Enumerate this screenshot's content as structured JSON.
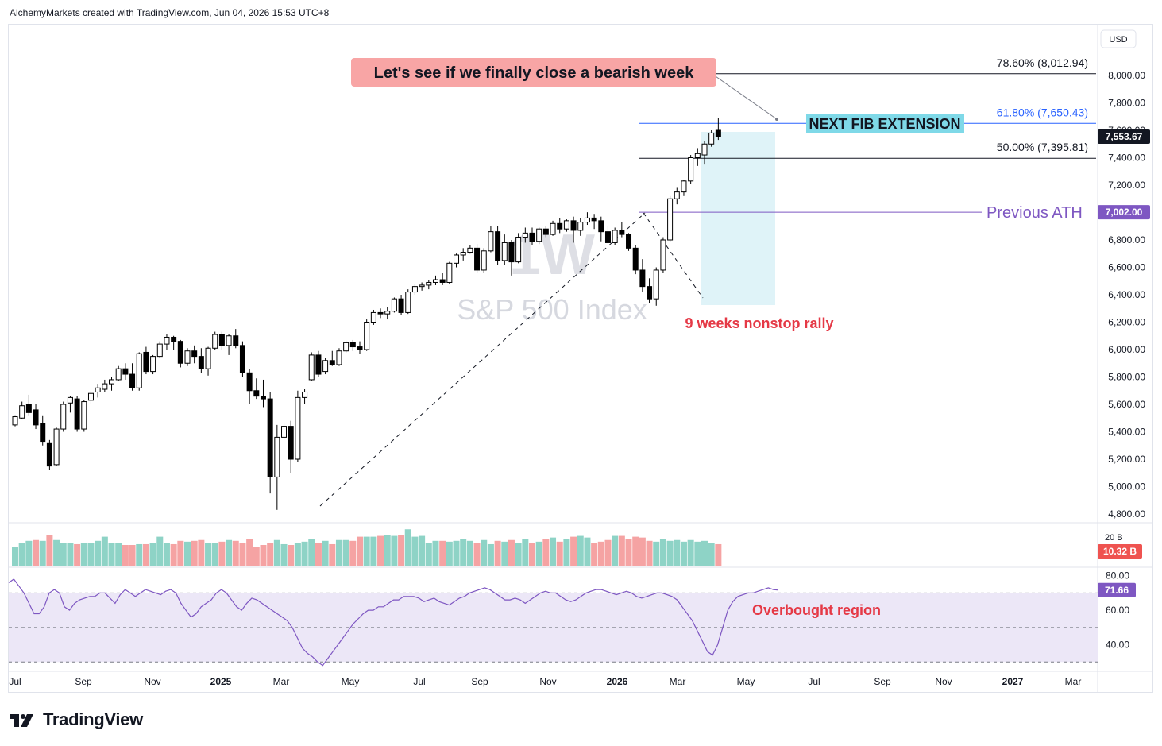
{
  "header": {
    "caption": "AlchemyMarkets created with TradingView.com, Jun 04, 2026 15:53 UTC+8"
  },
  "footer": {
    "brand": "TradingView"
  },
  "chart_data": {
    "type": "candlestick",
    "watermark": {
      "interval": "1W",
      "symbol": "S&P 500 Index"
    },
    "currency": "USD",
    "price_axis": {
      "ticks": [
        4800,
        5000,
        5200,
        5400,
        5600,
        5800,
        6000,
        6200,
        6400,
        6600,
        6800,
        7000,
        7200,
        7400,
        7600,
        7800,
        8000
      ],
      "tick_labels": [
        "4,800.00",
        "5,000.00",
        "5,200.00",
        "5,400.00",
        "5,600.00",
        "5,800.00",
        "6,000.00",
        "6,200.00",
        "6,400.00",
        "6,600.00",
        "6,800.00",
        "7,000.00",
        "7,200.00",
        "7,400.00",
        "7,600.00",
        "7,800.00",
        "8,000.00"
      ],
      "range": [
        4700,
        8300
      ]
    },
    "time_axis": {
      "labels": [
        "Jul",
        "Sep",
        "Nov",
        "2025",
        "Mar",
        "May",
        "Jul",
        "Sep",
        "Nov",
        "2026",
        "Mar",
        "May",
        "Jul",
        "Sep",
        "Nov",
        "2027",
        "Mar"
      ]
    },
    "last_price": {
      "value": 7553.67,
      "label": "7,553.67"
    },
    "previous_ath": {
      "value": 7002.0,
      "label": "7,002.00",
      "text": "Previous ATH",
      "color": "#7e57c2"
    },
    "fib_levels": [
      {
        "label": "78.60% (8,012.94)",
        "value": 8012.94,
        "color": "#131722"
      },
      {
        "label": "61.80% (7,650.43)",
        "value": 7650.43,
        "color": "#2962ff"
      },
      {
        "label": "50.00% (7,395.81)",
        "value": 7395.81,
        "color": "#131722"
      }
    ],
    "annotations": {
      "bearish_callout": "Let's see if we finally close a bearish week",
      "fib_extension_box": "NEXT FIB EXTENSION",
      "rally_note": "9 weeks nonstop rally",
      "overbought_note": "Overbought region"
    },
    "colors": {
      "up_candle": "#ffffff",
      "down_candle": "#000000",
      "candle_border": "#000000",
      "volume_up": "#8ed3c6",
      "volume_down": "#f5a3a3",
      "rsi_line": "#7e57c2",
      "rsi_band": "#ece7f7",
      "rally_box": "#dff3f8",
      "callout_bg": "#f8a5a5",
      "fib_box_bg": "#7fd9e8",
      "annotation_red": "#e53946"
    },
    "candles": [
      {
        "o": 5450,
        "h": 5520,
        "l": 5440,
        "c": 5510
      },
      {
        "o": 5500,
        "h": 5620,
        "l": 5490,
        "c": 5590
      },
      {
        "o": 5600,
        "h": 5670,
        "l": 5520,
        "c": 5540
      },
      {
        "o": 5560,
        "h": 5600,
        "l": 5420,
        "c": 5450
      },
      {
        "o": 5460,
        "h": 5520,
        "l": 5300,
        "c": 5330
      },
      {
        "o": 5320,
        "h": 5340,
        "l": 5120,
        "c": 5150
      },
      {
        "o": 5160,
        "h": 5430,
        "l": 5150,
        "c": 5420
      },
      {
        "o": 5420,
        "h": 5620,
        "l": 5400,
        "c": 5600
      },
      {
        "o": 5610,
        "h": 5660,
        "l": 5540,
        "c": 5650
      },
      {
        "o": 5640,
        "h": 5660,
        "l": 5400,
        "c": 5420
      },
      {
        "o": 5420,
        "h": 5630,
        "l": 5400,
        "c": 5620
      },
      {
        "o": 5630,
        "h": 5700,
        "l": 5600,
        "c": 5680
      },
      {
        "o": 5690,
        "h": 5750,
        "l": 5650,
        "c": 5720
      },
      {
        "o": 5710,
        "h": 5780,
        "l": 5690,
        "c": 5750
      },
      {
        "o": 5750,
        "h": 5800,
        "l": 5700,
        "c": 5780
      },
      {
        "o": 5780,
        "h": 5880,
        "l": 5770,
        "c": 5860
      },
      {
        "o": 5860,
        "h": 5900,
        "l": 5780,
        "c": 5820
      },
      {
        "o": 5820,
        "h": 5900,
        "l": 5700,
        "c": 5720
      },
      {
        "o": 5720,
        "h": 5980,
        "l": 5700,
        "c": 5970
      },
      {
        "o": 5980,
        "h": 6020,
        "l": 5820,
        "c": 5840
      },
      {
        "o": 5840,
        "h": 5960,
        "l": 5820,
        "c": 5950
      },
      {
        "o": 5950,
        "h": 6060,
        "l": 5940,
        "c": 6040
      },
      {
        "o": 6040,
        "h": 6110,
        "l": 6000,
        "c": 6090
      },
      {
        "o": 6090,
        "h": 6100,
        "l": 6000,
        "c": 6060
      },
      {
        "o": 6060,
        "h": 6070,
        "l": 5870,
        "c": 5900
      },
      {
        "o": 5900,
        "h": 6010,
        "l": 5880,
        "c": 5990
      },
      {
        "o": 5990,
        "h": 6030,
        "l": 5900,
        "c": 5950
      },
      {
        "o": 5950,
        "h": 6010,
        "l": 5830,
        "c": 5860
      },
      {
        "o": 5860,
        "h": 6020,
        "l": 5810,
        "c": 6010
      },
      {
        "o": 6010,
        "h": 6130,
        "l": 6000,
        "c": 6110
      },
      {
        "o": 6110,
        "h": 6130,
        "l": 6000,
        "c": 6030
      },
      {
        "o": 6030,
        "h": 6110,
        "l": 5960,
        "c": 6100
      },
      {
        "o": 6100,
        "h": 6150,
        "l": 6010,
        "c": 6030
      },
      {
        "o": 6030,
        "h": 6060,
        "l": 5800,
        "c": 5830
      },
      {
        "o": 5830,
        "h": 5860,
        "l": 5600,
        "c": 5700
      },
      {
        "o": 5700,
        "h": 5790,
        "l": 5640,
        "c": 5660
      },
      {
        "o": 5660,
        "h": 5780,
        "l": 5580,
        "c": 5640
      },
      {
        "o": 5640,
        "h": 5690,
        "l": 4950,
        "c": 5070
      },
      {
        "o": 5070,
        "h": 5450,
        "l": 4830,
        "c": 5360
      },
      {
        "o": 5360,
        "h": 5460,
        "l": 5340,
        "c": 5440
      },
      {
        "o": 5440,
        "h": 5480,
        "l": 5100,
        "c": 5200
      },
      {
        "o": 5200,
        "h": 5700,
        "l": 5180,
        "c": 5650
      },
      {
        "o": 5650,
        "h": 5710,
        "l": 5600,
        "c": 5690
      },
      {
        "o": 5780,
        "h": 5980,
        "l": 5770,
        "c": 5960
      },
      {
        "o": 5960,
        "h": 5990,
        "l": 5800,
        "c": 5820
      },
      {
        "o": 5840,
        "h": 5940,
        "l": 5820,
        "c": 5920
      },
      {
        "o": 5920,
        "h": 5990,
        "l": 5880,
        "c": 5890
      },
      {
        "o": 5890,
        "h": 6010,
        "l": 5880,
        "c": 5990
      },
      {
        "o": 5990,
        "h": 6060,
        "l": 5980,
        "c": 6050
      },
      {
        "o": 6050,
        "h": 6070,
        "l": 5990,
        "c": 6020
      },
      {
        "o": 6020,
        "h": 6060,
        "l": 5970,
        "c": 6000
      },
      {
        "o": 6000,
        "h": 6220,
        "l": 5990,
        "c": 6200
      },
      {
        "o": 6200,
        "h": 6290,
        "l": 6180,
        "c": 6270
      },
      {
        "o": 6270,
        "h": 6300,
        "l": 6230,
        "c": 6260
      },
      {
        "o": 6260,
        "h": 6310,
        "l": 6220,
        "c": 6280
      },
      {
        "o": 6280,
        "h": 6380,
        "l": 6270,
        "c": 6370
      },
      {
        "o": 6370,
        "h": 6400,
        "l": 6250,
        "c": 6270
      },
      {
        "o": 6270,
        "h": 6440,
        "l": 6260,
        "c": 6420
      },
      {
        "o": 6420,
        "h": 6480,
        "l": 6400,
        "c": 6460
      },
      {
        "o": 6460,
        "h": 6490,
        "l": 6430,
        "c": 6470
      },
      {
        "o": 6470,
        "h": 6510,
        "l": 6440,
        "c": 6490
      },
      {
        "o": 6490,
        "h": 6540,
        "l": 6470,
        "c": 6510
      },
      {
        "o": 6510,
        "h": 6560,
        "l": 6470,
        "c": 6490
      },
      {
        "o": 6490,
        "h": 6640,
        "l": 6480,
        "c": 6630
      },
      {
        "o": 6630,
        "h": 6700,
        "l": 6600,
        "c": 6690
      },
      {
        "o": 6690,
        "h": 6740,
        "l": 6650,
        "c": 6710
      },
      {
        "o": 6710,
        "h": 6760,
        "l": 6700,
        "c": 6740
      },
      {
        "o": 6740,
        "h": 6770,
        "l": 6560,
        "c": 6580
      },
      {
        "o": 6580,
        "h": 6740,
        "l": 6560,
        "c": 6720
      },
      {
        "o": 6720,
        "h": 6900,
        "l": 6710,
        "c": 6860
      },
      {
        "o": 6860,
        "h": 6900,
        "l": 6620,
        "c": 6650
      },
      {
        "o": 6650,
        "h": 6840,
        "l": 6620,
        "c": 6780
      },
      {
        "o": 6780,
        "h": 6800,
        "l": 6540,
        "c": 6640
      },
      {
        "o": 6640,
        "h": 6850,
        "l": 6630,
        "c": 6820
      },
      {
        "o": 6820,
        "h": 6890,
        "l": 6780,
        "c": 6850
      },
      {
        "o": 6850,
        "h": 6890,
        "l": 6760,
        "c": 6790
      },
      {
        "o": 6790,
        "h": 6890,
        "l": 6770,
        "c": 6880
      },
      {
        "o": 6880,
        "h": 6900,
        "l": 6820,
        "c": 6840
      },
      {
        "o": 6840,
        "h": 6940,
        "l": 6830,
        "c": 6920
      },
      {
        "o": 6920,
        "h": 6960,
        "l": 6850,
        "c": 6880
      },
      {
        "o": 6880,
        "h": 6950,
        "l": 6860,
        "c": 6940
      },
      {
        "o": 6940,
        "h": 6970,
        "l": 6780,
        "c": 6870
      },
      {
        "o": 6870,
        "h": 6960,
        "l": 6830,
        "c": 6930
      },
      {
        "o": 6930,
        "h": 7002,
        "l": 6910,
        "c": 6960
      },
      {
        "o": 6960,
        "h": 6990,
        "l": 6880,
        "c": 6940
      },
      {
        "o": 6940,
        "h": 6970,
        "l": 6790,
        "c": 6860
      },
      {
        "o": 6860,
        "h": 6900,
        "l": 6770,
        "c": 6780
      },
      {
        "o": 6780,
        "h": 6890,
        "l": 6760,
        "c": 6870
      },
      {
        "o": 6870,
        "h": 6930,
        "l": 6820,
        "c": 6840
      },
      {
        "o": 6840,
        "h": 6850,
        "l": 6720,
        "c": 6740
      },
      {
        "o": 6740,
        "h": 6760,
        "l": 6550,
        "c": 6580
      },
      {
        "o": 6580,
        "h": 6660,
        "l": 6420,
        "c": 6460
      },
      {
        "o": 6460,
        "h": 6520,
        "l": 6340,
        "c": 6370
      },
      {
        "o": 6370,
        "h": 6600,
        "l": 6320,
        "c": 6580
      },
      {
        "o": 6580,
        "h": 6820,
        "l": 6560,
        "c": 6800
      },
      {
        "o": 6800,
        "h": 7120,
        "l": 6790,
        "c": 7100
      },
      {
        "o": 7100,
        "h": 7180,
        "l": 7060,
        "c": 7150
      },
      {
        "o": 7150,
        "h": 7240,
        "l": 7120,
        "c": 7230
      },
      {
        "o": 7230,
        "h": 7420,
        "l": 7210,
        "c": 7400
      },
      {
        "o": 7400,
        "h": 7470,
        "l": 7340,
        "c": 7430
      },
      {
        "o": 7420,
        "h": 7520,
        "l": 7350,
        "c": 7500
      },
      {
        "o": 7500,
        "h": 7600,
        "l": 7480,
        "c": 7580
      },
      {
        "o": 7600,
        "h": 7690,
        "l": 7530,
        "c": 7553.67
      }
    ],
    "volume_panel": {
      "tick_label": "20 B",
      "last_label": "10.32 B"
    },
    "volume_ratios": [
      0.45,
      0.55,
      0.6,
      0.62,
      0.6,
      0.75,
      0.62,
      0.55,
      0.55,
      0.52,
      0.55,
      0.55,
      0.6,
      0.7,
      0.55,
      0.55,
      0.5,
      0.5,
      0.52,
      0.52,
      0.55,
      0.7,
      0.55,
      0.52,
      0.6,
      0.58,
      0.6,
      0.62,
      0.55,
      0.55,
      0.58,
      0.62,
      0.6,
      0.55,
      0.65,
      0.45,
      0.5,
      0.55,
      0.62,
      0.52,
      0.5,
      0.55,
      0.58,
      0.65,
      0.55,
      0.6,
      0.52,
      0.62,
      0.62,
      0.6,
      0.7,
      0.7,
      0.7,
      0.72,
      0.75,
      0.72,
      0.75,
      0.88,
      0.7,
      0.72,
      0.55,
      0.6,
      0.6,
      0.58,
      0.6,
      0.65,
      0.6,
      0.55,
      0.62,
      0.52,
      0.6,
      0.58,
      0.62,
      0.55,
      0.65,
      0.55,
      0.58,
      0.65,
      0.68,
      0.58,
      0.65,
      0.7,
      0.72,
      0.68,
      0.55,
      0.58,
      0.62,
      0.72,
      0.72,
      0.65,
      0.7,
      0.68,
      0.6,
      0.58,
      0.65,
      0.6,
      0.62,
      0.58,
      0.62,
      0.58,
      0.6,
      0.55,
      0.52
    ],
    "volume_down_flags": [
      0,
      0,
      0,
      1,
      0,
      1,
      0,
      0,
      0,
      1,
      0,
      0,
      0,
      0,
      0,
      0,
      1,
      1,
      0,
      1,
      0,
      0,
      0,
      1,
      1,
      0,
      1,
      1,
      0,
      0,
      1,
      0,
      1,
      1,
      1,
      1,
      1,
      1,
      0,
      0,
      1,
      0,
      0,
      0,
      1,
      0,
      1,
      0,
      0,
      1,
      1,
      0,
      0,
      1,
      0,
      0,
      1,
      0,
      0,
      0,
      0,
      0,
      1,
      0,
      0,
      0,
      0,
      1,
      0,
      0,
      1,
      0,
      1,
      0,
      0,
      1,
      0,
      1,
      0,
      1,
      0,
      1,
      0,
      0,
      1,
      1,
      1,
      0,
      1,
      1,
      1,
      1,
      1,
      0,
      0,
      0,
      0,
      0,
      0,
      0,
      0,
      0,
      1
    ],
    "rsi": {
      "ticks": [
        40,
        60,
        80
      ],
      "tick_labels": [
        "40.00",
        "60.00",
        "80.00"
      ],
      "band": [
        30,
        70
      ],
      "range": [
        26,
        84
      ],
      "last_label": "71.66",
      "values": [
        76,
        78,
        74,
        70,
        64,
        58,
        58,
        62,
        70,
        72,
        70,
        62,
        60,
        64,
        66,
        67,
        68,
        68,
        70,
        70,
        67,
        64,
        69,
        72,
        70,
        68,
        70,
        72,
        71,
        70,
        69,
        71,
        72,
        70,
        64,
        60,
        56,
        58,
        62,
        64,
        66,
        70,
        72,
        70,
        66,
        62,
        60,
        64,
        67,
        66,
        64,
        62,
        60,
        58,
        56,
        54,
        50,
        44,
        38,
        35,
        33,
        30,
        28,
        32,
        36,
        40,
        44,
        48,
        52,
        55,
        58,
        60,
        60,
        62,
        62,
        64,
        66,
        66,
        68,
        68,
        68,
        67,
        65,
        66,
        67,
        65,
        64,
        63,
        65,
        67,
        68,
        70,
        71,
        72,
        73,
        72,
        70,
        68,
        66,
        66,
        67,
        66,
        64,
        66,
        68,
        70,
        71,
        70,
        70,
        68,
        66,
        65,
        66,
        68,
        70,
        71,
        72,
        72,
        71,
        70,
        69,
        70,
        71,
        70,
        68,
        67,
        68,
        69,
        70,
        70,
        69,
        68,
        66,
        62,
        58,
        54,
        48,
        42,
        36,
        34,
        40,
        50,
        60,
        65,
        68,
        69,
        70,
        70,
        71,
        72,
        73,
        72,
        71.66
      ]
    }
  }
}
